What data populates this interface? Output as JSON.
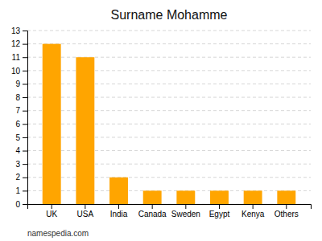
{
  "chart_data": {
    "type": "bar",
    "title": "Surname Mohamme",
    "categories": [
      "UK",
      "USA",
      "India",
      "Canada",
      "Sweden",
      "Egypt",
      "Kenya",
      "Others"
    ],
    "values": [
      12,
      11,
      2,
      1,
      1,
      1,
      1,
      1
    ],
    "color": "#FFA500",
    "ylim": [
      0,
      13
    ],
    "yticks": [
      0,
      1,
      2,
      3,
      4,
      5,
      6,
      7,
      8,
      9,
      10,
      11,
      12,
      13
    ],
    "grid": true,
    "annotations": [
      "namespedia.com"
    ]
  }
}
